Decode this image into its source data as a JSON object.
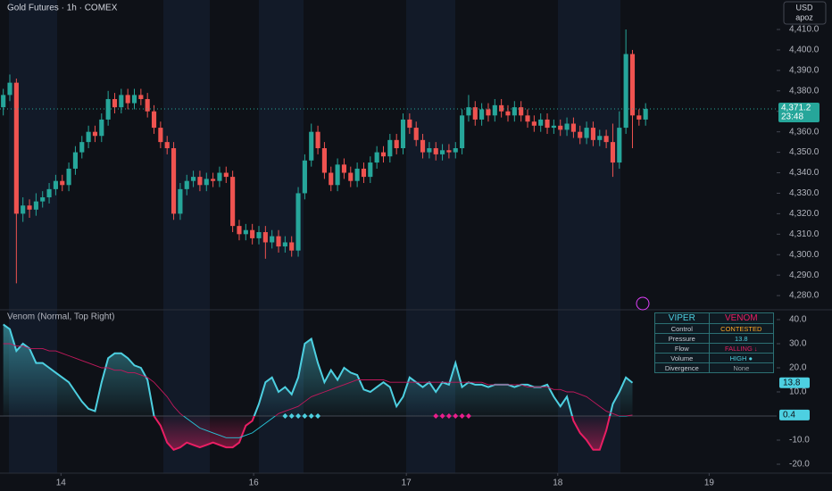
{
  "chart_data": [
    {
      "type": "candlestick",
      "title": "Gold Futures · 1h · COMEX",
      "currency": "USD",
      "account": "apoz",
      "open": [
        4372,
        4378,
        4384,
        4320,
        4324,
        4322,
        4326,
        4328,
        4332,
        4336,
        4334,
        4342,
        4350,
        4355,
        4360,
        4358,
        4366,
        4376,
        4372,
        4378,
        4374,
        4378,
        4376,
        4370,
        4362,
        4355,
        4352,
        4320,
        4332,
        4336,
        4338,
        4334,
        4337,
        4336,
        4340,
        4338,
        4314,
        4310,
        4312,
        4308,
        4311,
        4306,
        4309,
        4304,
        4306,
        4302,
        4330,
        4346,
        4360,
        4352,
        4340,
        4334,
        4344,
        4340,
        4336,
        4342,
        4338,
        4345,
        4350,
        4348,
        4356,
        4352,
        4366,
        4362,
        4356,
        4350,
        4352,
        4349,
        4351,
        4350,
        4352,
        4368,
        4372,
        4366,
        4371,
        4368,
        4373,
        4370,
        4368,
        4372,
        4368,
        4365,
        4363,
        4366,
        4362,
        4363,
        4361,
        4364,
        4360,
        4357,
        4362,
        4356,
        4358,
        4355,
        4345,
        4362,
        4398,
        4368,
        4366
      ],
      "high": [
        4381,
        4388,
        4386,
        4328,
        4327,
        4330,
        4331,
        4335,
        4339,
        4339,
        4345,
        4353,
        4358,
        4363,
        4363,
        4369,
        4380,
        4379,
        4381,
        4381,
        4381,
        4381,
        4379,
        4373,
        4365,
        4358,
        4355,
        4335,
        4339,
        4341,
        4341,
        4340,
        4340,
        4343,
        4343,
        4341,
        4317,
        4315,
        4315,
        4314,
        4314,
        4312,
        4312,
        4309,
        4309,
        4333,
        4349,
        4364,
        4363,
        4355,
        4343,
        4347,
        4347,
        4343,
        4345,
        4345,
        4348,
        4353,
        4353,
        4359,
        4359,
        4369,
        4369,
        4365,
        4359,
        4355,
        4355,
        4354,
        4354,
        4355,
        4371,
        4378,
        4375,
        4374,
        4374,
        4376,
        4376,
        4373,
        4375,
        4375,
        4371,
        4368,
        4369,
        4369,
        4366,
        4366,
        4367,
        4367,
        4363,
        4365,
        4365,
        4361,
        4361,
        4364,
        4370,
        4410,
        4400,
        4371,
        4374
      ],
      "low": [
        4368,
        4375,
        4286,
        4316,
        4318,
        4319,
        4323,
        4325,
        4329,
        4331,
        4331,
        4339,
        4347,
        4352,
        4355,
        4355,
        4363,
        4369,
        4369,
        4371,
        4371,
        4373,
        4367,
        4359,
        4352,
        4349,
        4317,
        4317,
        4329,
        4333,
        4331,
        4331,
        4333,
        4333,
        4335,
        4311,
        4307,
        4307,
        4305,
        4305,
        4298,
        4303,
        4301,
        4301,
        4299,
        4299,
        4327,
        4343,
        4349,
        4337,
        4331,
        4331,
        4337,
        4333,
        4333,
        4335,
        4335,
        4342,
        4345,
        4345,
        4349,
        4349,
        4359,
        4353,
        4347,
        4347,
        4346,
        4346,
        4347,
        4347,
        4349,
        4365,
        4363,
        4363,
        4365,
        4365,
        4367,
        4365,
        4365,
        4365,
        4362,
        4360,
        4360,
        4359,
        4359,
        4358,
        4358,
        4357,
        4354,
        4354,
        4353,
        4353,
        4352,
        4338,
        4342,
        4359,
        4352,
        4363,
        4363
      ],
      "close": [
        4378,
        4384,
        4320,
        4324,
        4322,
        4326,
        4328,
        4332,
        4336,
        4334,
        4342,
        4350,
        4355,
        4360,
        4358,
        4366,
        4376,
        4372,
        4378,
        4374,
        4378,
        4376,
        4370,
        4362,
        4355,
        4352,
        4320,
        4332,
        4336,
        4338,
        4334,
        4337,
        4336,
        4340,
        4338,
        4314,
        4310,
        4312,
        4308,
        4311,
        4306,
        4309,
        4304,
        4306,
        4302,
        4330,
        4346,
        4360,
        4352,
        4340,
        4334,
        4344,
        4340,
        4336,
        4342,
        4338,
        4345,
        4350,
        4348,
        4356,
        4352,
        4366,
        4362,
        4356,
        4350,
        4352,
        4349,
        4351,
        4350,
        4352,
        4368,
        4372,
        4366,
        4371,
        4368,
        4373,
        4370,
        4368,
        4372,
        4368,
        4365,
        4363,
        4366,
        4362,
        4363,
        4361,
        4364,
        4360,
        4357,
        4362,
        4356,
        4358,
        4355,
        4345,
        4362,
        4398,
        4368,
        4366,
        4371.2
      ],
      "up_color": "#26a69a",
      "down_color": "#ef5350",
      "price_label": "4,371.2",
      "countdown": "23:48",
      "xlim": [
        -0.5,
        118
      ],
      "xticks": [
        {
          "value": 8.8,
          "label": "14"
        },
        {
          "value": 38.2,
          "label": "16"
        },
        {
          "value": 61.5,
          "label": "17"
        },
        {
          "value": 84.6,
          "label": "18"
        },
        {
          "value": 107.7,
          "label": "19"
        }
      ],
      "ylim": [
        4273.5,
        4424.4
      ],
      "yticks": [
        {
          "value": 4280,
          "label": "4,280.0"
        },
        {
          "value": 4290,
          "label": "4,290.0"
        },
        {
          "value": 4300,
          "label": "4,300.0"
        },
        {
          "value": 4310,
          "label": "4,310.0"
        },
        {
          "value": 4320,
          "label": "4,320.0"
        },
        {
          "value": 4330,
          "label": "4,330.0"
        },
        {
          "value": 4340,
          "label": "4,340.0"
        },
        {
          "value": 4350,
          "label": "4,350.0"
        },
        {
          "value": 4360,
          "label": "4,360.0"
        },
        {
          "value": 4370,
          "label": "4,370.0"
        },
        {
          "value": 4380,
          "label": "4,380.0"
        },
        {
          "value": 4390,
          "label": "4,390.0"
        },
        {
          "value": 4400,
          "label": "4,400.0"
        },
        {
          "value": 4410,
          "label": "4,410.0"
        }
      ]
    },
    {
      "type": "area",
      "title": "Venom (Normal, Top Right)",
      "series": [
        {
          "color": "#4dd0e1",
          "color_below": "#e91e63",
          "values": [
            38,
            36,
            27,
            30,
            28,
            22,
            22,
            20,
            18,
            16,
            14,
            10,
            6,
            3,
            2,
            14,
            24,
            26,
            26,
            24,
            21,
            20,
            15,
            0,
            -4,
            -11,
            -14,
            -13,
            -11,
            -12,
            -13,
            -12,
            -11,
            -12,
            -13,
            -13,
            -11,
            -4,
            -2,
            5,
            14,
            16,
            10,
            12,
            9,
            16,
            30,
            32,
            22,
            14,
            19,
            15,
            20,
            18,
            17,
            11,
            10,
            12,
            14,
            12,
            4,
            8,
            16,
            14,
            12,
            14,
            10,
            14,
            13,
            22,
            12,
            14,
            13,
            13,
            12,
            13,
            13,
            13,
            12,
            13,
            13,
            12,
            12,
            13,
            8,
            4,
            8,
            -2,
            -7,
            -10,
            -14,
            -14,
            -6,
            5,
            10,
            16,
            13.8,
            null,
            null
          ]
        },
        {
          "color": "#c2185b",
          "color_below": "#26c6da",
          "values": [
            30,
            30,
            29,
            29,
            28,
            28,
            28,
            27,
            27,
            26,
            25,
            24,
            23,
            22,
            21,
            20,
            20,
            19,
            19,
            18,
            18,
            17,
            16,
            14,
            11,
            8,
            4,
            1,
            -1,
            -3,
            -5,
            -6,
            -7,
            -8,
            -9,
            -9,
            -9,
            -8,
            -7,
            -5,
            -3,
            -1,
            1,
            2,
            3,
            4,
            6,
            8,
            9,
            10,
            11,
            12,
            13,
            14,
            15,
            15,
            15,
            15,
            15,
            14,
            14,
            14,
            14,
            14,
            14,
            14,
            14,
            14,
            14,
            14,
            14,
            14,
            14,
            14,
            13,
            13,
            13,
            13,
            13,
            13,
            12,
            12,
            12,
            12,
            11,
            11,
            10,
            10,
            9,
            8,
            6,
            4,
            2,
            1,
            0,
            0,
            0.4,
            null,
            null
          ]
        }
      ],
      "signals": [
        {
          "color": "#4dd0e1",
          "level": 0,
          "index": [
            43,
            44,
            45,
            46,
            47,
            48
          ]
        },
        {
          "color": "#e91e8c",
          "level": 0,
          "index": [
            66,
            67,
            68,
            69,
            70,
            71
          ]
        }
      ],
      "ylim": [
        -23.7,
        43.7
      ],
      "yticks": [
        {
          "value": -20,
          "label": "-20.0"
        },
        {
          "value": -10,
          "label": "-10.0"
        },
        {
          "value": 10,
          "label": "10.0"
        },
        {
          "value": 20,
          "label": "20.0"
        },
        {
          "value": 30,
          "label": "30.0"
        },
        {
          "value": 40,
          "label": "40.0"
        }
      ]
    }
  ],
  "table": {
    "header": [
      "VIPER",
      "VENOM"
    ],
    "rows": [
      [
        "Control",
        "CONTESTED"
      ],
      [
        "Pressure",
        "13.8"
      ],
      [
        "Flow",
        "FALLING ↓"
      ],
      [
        "Volume",
        "HIGH ●"
      ],
      [
        "Divergence",
        "None"
      ]
    ]
  }
}
